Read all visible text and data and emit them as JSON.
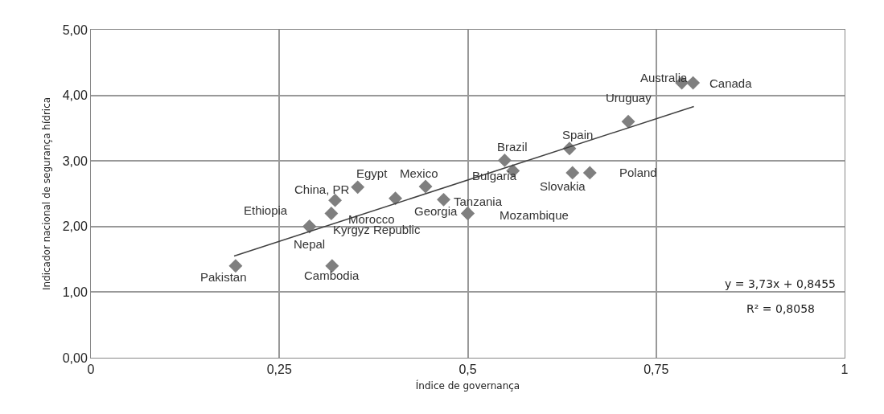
{
  "chart_data": {
    "type": "scatter",
    "xlabel": "Índice de governança",
    "ylabel": "Indicador nacional de segurança hídrica",
    "xlim": [
      0,
      1
    ],
    "xticks": [
      0,
      {
        "value": 0.25,
        "label": "0,25"
      },
      {
        "value": 0.5,
        "label": "0,5"
      },
      {
        "value": 0.75,
        "label": "0,75"
      },
      1
    ],
    "ylim": [
      0,
      5
    ],
    "yticks": [
      {
        "value": 0,
        "label": "0,00"
      },
      {
        "value": 1,
        "label": "1,00"
      },
      {
        "value": 2,
        "label": "2,00"
      },
      {
        "value": 3,
        "label": "3,00"
      },
      {
        "value": 4,
        "label": "4,00"
      },
      {
        "value": 5,
        "label": "5,00"
      }
    ],
    "grid": true,
    "marker": "diamond",
    "series": [
      {
        "color": "#7f7f7f",
        "x": [
          0.192,
          0.32,
          0.29,
          0.29,
          0.319,
          0.324,
          0.354,
          0.404,
          0.444,
          0.468,
          0.5,
          0.5,
          0.56,
          0.549,
          0.635,
          0.639,
          0.662,
          0.713,
          0.784,
          0.799
        ],
        "values": [
          1.4,
          1.4,
          2.0,
          2.0,
          2.2,
          2.4,
          2.6,
          2.43,
          2.61,
          2.41,
          2.2,
          2.2,
          2.85,
          3.01,
          3.19,
          2.82,
          2.82,
          3.6,
          4.19,
          4.19
        ]
      },
      {
        "type": "line",
        "color": "#404040",
        "marker": "none",
        "x": [
          0.19,
          0.8
        ],
        "values": [
          1.55,
          3.83
        ]
      }
    ],
    "annotations": [
      {
        "text": "Pakistan",
        "x": 0.192,
        "y": 1.4
      },
      {
        "text": "Cambodia",
        "x": 0.32,
        "y": 1.4
      },
      {
        "text": "Nepal",
        "x": 0.29,
        "y": 2.0
      },
      {
        "text": "Ethiopia",
        "x": 0.29,
        "y": 2.0
      },
      {
        "text": "Kyrgyz Republic",
        "x": 0.319,
        "y": 2.2
      },
      {
        "text": "China, PR",
        "x": 0.324,
        "y": 2.4
      },
      {
        "text": "Egypt",
        "x": 0.354,
        "y": 2.6
      },
      {
        "text": "Morocco",
        "x": 0.404,
        "y": 2.43
      },
      {
        "text": "Mexico",
        "x": 0.444,
        "y": 2.61
      },
      {
        "text": "Georgia",
        "x": 0.468,
        "y": 2.41
      },
      {
        "text": "Tanzania",
        "x": 0.5,
        "y": 2.2
      },
      {
        "text": "Mozambique",
        "x": 0.5,
        "y": 2.2
      },
      {
        "text": "Bulgaria",
        "x": 0.56,
        "y": 2.85
      },
      {
        "text": "Brazil",
        "x": 0.549,
        "y": 3.01
      },
      {
        "text": "Spain",
        "x": 0.635,
        "y": 3.19
      },
      {
        "text": "Slovakia",
        "x": 0.639,
        "y": 2.82
      },
      {
        "text": "Poland",
        "x": 0.662,
        "y": 2.82
      },
      {
        "text": "Uruguay",
        "x": 0.713,
        "y": 3.6
      },
      {
        "text": "Australia",
        "x": 0.784,
        "y": 4.19
      },
      {
        "text": "Canada",
        "x": 0.799,
        "y": 4.19
      },
      "y = 3,73x + 0,8455",
      "R² = 0,8058"
    ]
  }
}
